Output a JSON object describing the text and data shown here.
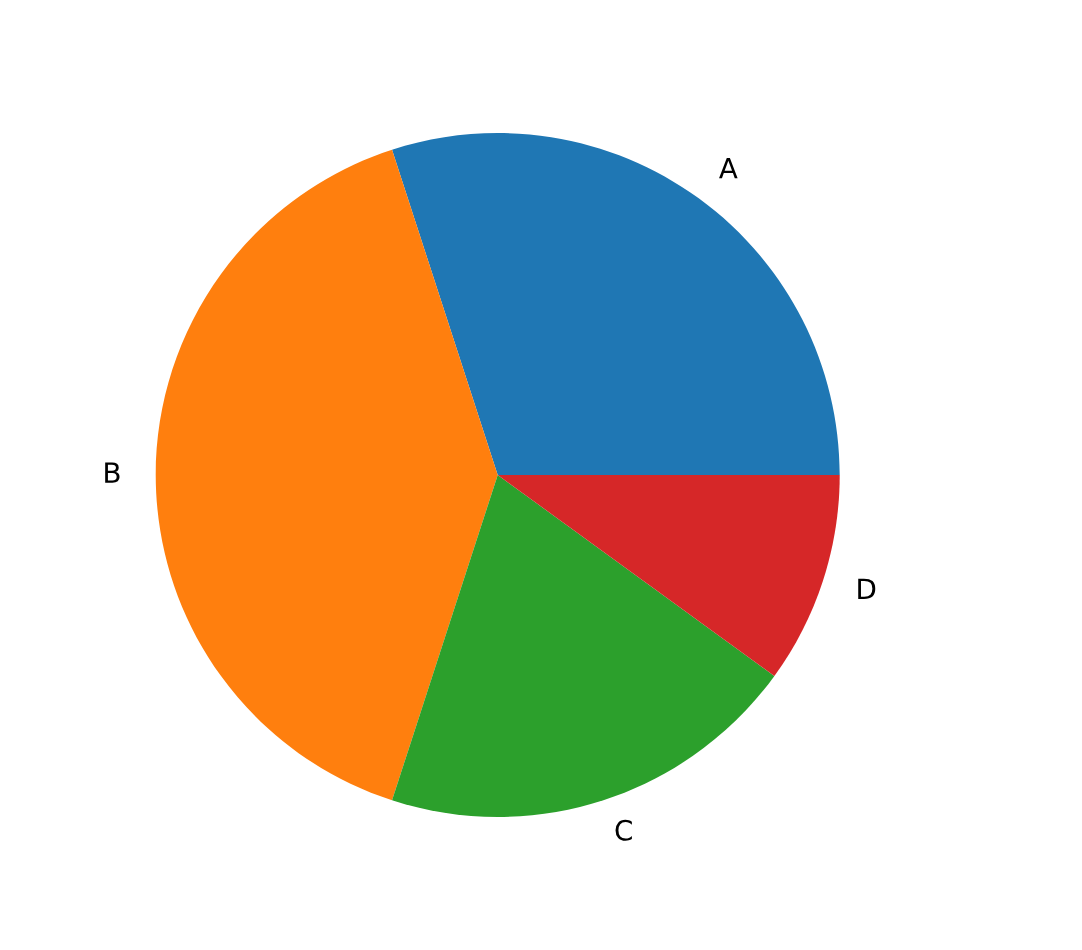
{
  "chart_data": {
    "type": "pie",
    "categories": [
      "A",
      "B",
      "C",
      "D"
    ],
    "values": [
      30,
      40,
      20,
      10
    ],
    "colors": [
      "#1f77b4",
      "#ff7f0e",
      "#2ca02c",
      "#d62728"
    ]
  }
}
